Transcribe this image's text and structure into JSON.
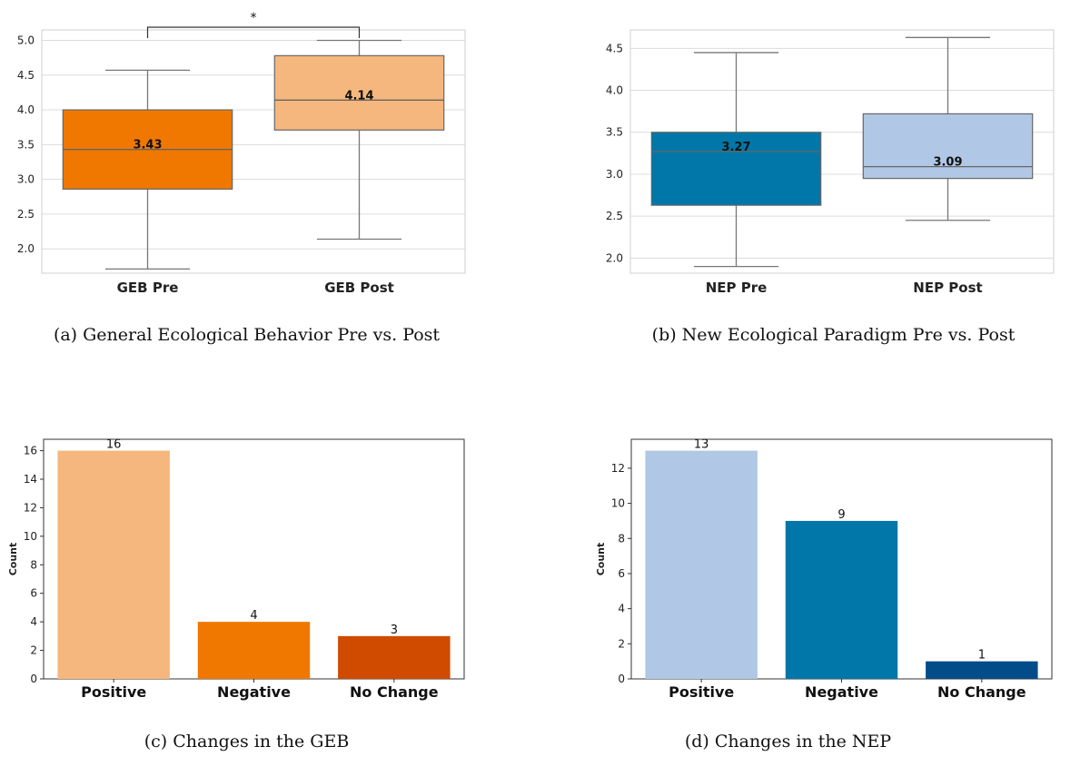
{
  "figures": [
    {
      "caption": "(a) General Ecological Behavior Pre vs. Post"
    },
    {
      "caption": "(b) New Ecological Paradigm Pre vs. Post"
    },
    {
      "caption": "(c) Changes in the GEB"
    },
    {
      "caption": "(d) Changes in the NEP"
    }
  ],
  "chart_data": [
    {
      "type": "box",
      "title": "",
      "xlabel": "",
      "ylabel": "",
      "ylim": [
        1.65,
        5.15
      ],
      "yticks": [
        "2.0",
        "2.5",
        "3.0",
        "3.5",
        "4.0",
        "4.5",
        "5.0"
      ],
      "grid": true,
      "significance_marker": "*",
      "series": [
        {
          "name": "GEB Pre",
          "color": "#f07800",
          "min": 1.71,
          "q1": 2.86,
          "median": 3.43,
          "q3": 4.0,
          "max": 4.57,
          "median_label": "3.43"
        },
        {
          "name": "GEB Post",
          "color": "#f5b77d",
          "min": 2.14,
          "q1": 3.71,
          "median": 4.14,
          "q3": 4.78,
          "max": 5.0,
          "median_label": "4.14"
        }
      ]
    },
    {
      "type": "box",
      "title": "",
      "xlabel": "",
      "ylabel": "",
      "ylim": [
        1.82,
        4.72
      ],
      "yticks": [
        "2.0",
        "2.5",
        "3.0",
        "3.5",
        "4.0",
        "4.5"
      ],
      "grid": true,
      "series": [
        {
          "name": "NEP Pre",
          "color": "#0077a8",
          "min": 1.9,
          "q1": 2.63,
          "median": 3.27,
          "q3": 3.5,
          "max": 4.45,
          "median_label": "3.27"
        },
        {
          "name": "NEP Post",
          "color": "#b0c7e5",
          "min": 2.45,
          "q1": 2.95,
          "median": 3.09,
          "q3": 3.72,
          "max": 4.63,
          "median_label": "3.09"
        }
      ]
    },
    {
      "type": "bar",
      "title": "",
      "xlabel": "",
      "ylabel": "Count",
      "ylim": [
        0,
        16.8
      ],
      "yticks": [
        "0",
        "2",
        "4",
        "6",
        "8",
        "10",
        "12",
        "14",
        "16"
      ],
      "grid": false,
      "categories": [
        "Positive",
        "Negative",
        "No Change"
      ],
      "values": [
        16,
        4,
        3
      ],
      "colors": [
        "#f5b77d",
        "#f07800",
        "#d04a00"
      ]
    },
    {
      "type": "bar",
      "title": "",
      "xlabel": "",
      "ylabel": "Count",
      "ylim": [
        0,
        13.65
      ],
      "yticks": [
        "0",
        "2",
        "4",
        "6",
        "8",
        "10",
        "12"
      ],
      "grid": false,
      "categories": [
        "Positive",
        "Negative",
        "No Change"
      ],
      "values": [
        13,
        9,
        1
      ],
      "colors": [
        "#b0c7e5",
        "#0077a8",
        "#034c8a"
      ]
    }
  ]
}
